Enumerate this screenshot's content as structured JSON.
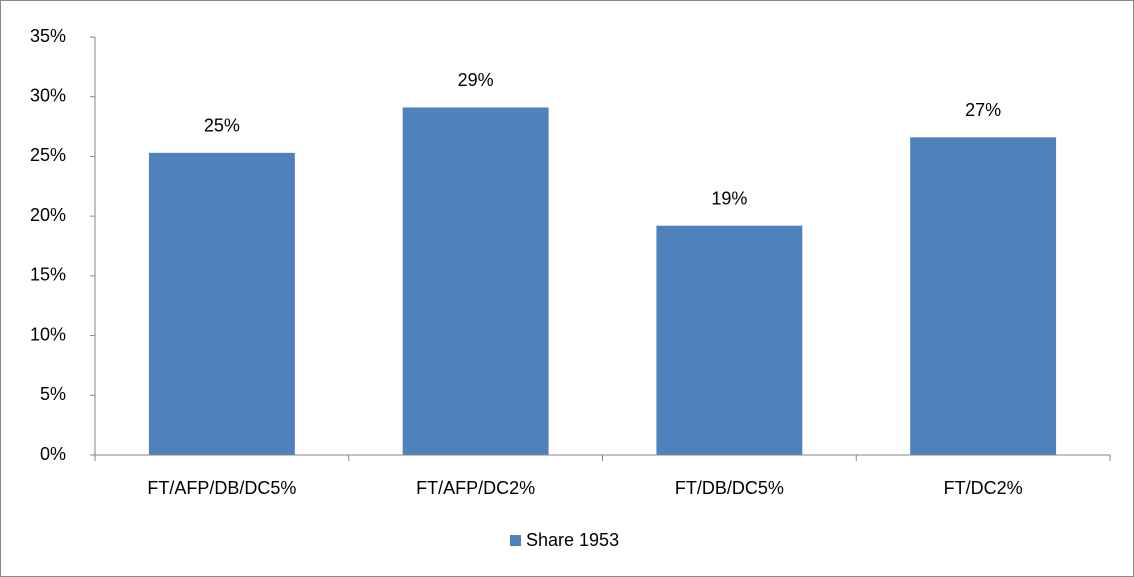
{
  "chart_data": {
    "type": "bar",
    "categories": [
      "FT/AFP/DB/DC5%",
      "FT/AFP/DC2%",
      "FT/DB/DC5%",
      "FT/DC2%"
    ],
    "series": [
      {
        "name": "Share 1953",
        "color": "#4f81bd",
        "values": [
          25.3,
          29.1,
          19.2,
          26.6
        ],
        "value_labels": [
          "25%",
          "29%",
          "19%",
          "27%"
        ]
      }
    ],
    "ylim": [
      0,
      35
    ],
    "yticks": [
      {
        "value": 0,
        "label": "0%"
      },
      {
        "value": 5,
        "label": "5%"
      },
      {
        "value": 10,
        "label": "10%"
      },
      {
        "value": 15,
        "label": "15%"
      },
      {
        "value": 20,
        "label": "20%"
      },
      {
        "value": 25,
        "label": "25%"
      },
      {
        "value": 30,
        "label": "30%"
      },
      {
        "value": 35,
        "label": "35%"
      }
    ],
    "legend": "bottom"
  }
}
